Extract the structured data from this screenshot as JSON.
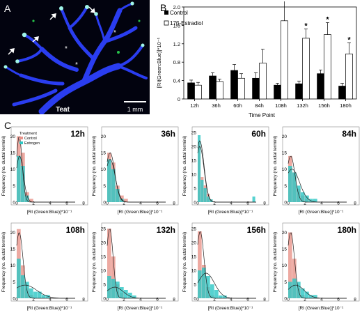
{
  "panels": {
    "a": "A",
    "b": "B",
    "c": "C"
  },
  "micrograph": {
    "location_label": "Teat",
    "scale_bar_label": "1 mm",
    "colors": {
      "background": "#02030f",
      "duct": "#2a3df0",
      "termini": "#9ff5e8",
      "gfp": "#27c24a"
    }
  },
  "bar_chart": {
    "legend": {
      "control": "Control",
      "treated": "17β-Estradiol"
    },
    "ylabel": "[RI(Green:Blue)]*10⁻¹",
    "xlabel": "Time Point",
    "significance_marker": "*",
    "colors": {
      "control": "#000000",
      "treated": "#ffffff"
    }
  },
  "chart_data": [
    {
      "type": "bar",
      "categories": [
        "12h",
        "36h",
        "60h",
        "84h",
        "108h",
        "132h",
        "156h",
        "180h"
      ],
      "series": [
        {
          "name": "Control",
          "values": [
            0.35,
            0.5,
            0.62,
            0.45,
            0.3,
            0.33,
            0.55,
            0.28
          ],
          "errors": [
            0.06,
            0.07,
            0.13,
            0.12,
            0.04,
            0.06,
            0.08,
            0.06
          ]
        },
        {
          "name": "17β-Estradiol",
          "values": [
            0.3,
            0.38,
            0.45,
            0.78,
            1.7,
            1.32,
            1.4,
            0.98
          ],
          "errors": [
            0.06,
            0.05,
            0.1,
            0.3,
            0.55,
            0.2,
            0.26,
            0.24
          ]
        }
      ],
      "significant": [
        false,
        false,
        false,
        false,
        true,
        true,
        true,
        true
      ],
      "ylim": [
        0,
        2.0
      ],
      "yticks": [
        "0",
        "0.4",
        "0.8",
        "1.2",
        "1.6",
        "2.0"
      ],
      "xlabel": "Time Point",
      "ylabel": "[RI(Green:Blue)]*10⁻¹"
    },
    {
      "type": "bar",
      "panels": [
        {
          "title": "12h",
          "control": [
            20,
            15,
            3,
            1,
            0,
            0,
            0,
            0
          ],
          "estrogen": [
            14,
            11,
            2,
            0,
            0,
            0,
            0,
            0
          ],
          "control_curve_peak": 20,
          "control_curve_center": 0.3,
          "control_curve_width": 0.35,
          "estrogen_curve_peak": 14,
          "estrogen_curve_center": 0.35,
          "estrogen_curve_width": 0.45
        },
        {
          "title": "36h",
          "control": [
            15,
            12,
            5,
            2,
            1,
            0,
            0,
            0
          ],
          "estrogen": [
            13,
            10,
            4,
            1,
            0,
            0,
            0,
            0
          ],
          "control_curve_peak": 15,
          "control_curve_center": 0.35,
          "control_curve_width": 0.55,
          "estrogen_curve_peak": 13,
          "estrogen_curve_center": 0.35,
          "estrogen_curve_width": 0.6
        },
        {
          "title": "60h",
          "control": [
            22,
            9,
            6,
            3,
            1,
            0,
            0,
            0,
            0,
            0,
            0,
            0,
            0,
            0,
            0,
            0,
            0,
            0,
            0,
            0,
            0,
            0
          ],
          "estrogen": [
            24,
            8,
            5,
            2,
            1,
            0,
            0,
            0,
            0,
            0,
            0,
            0,
            0,
            0,
            0,
            0,
            0,
            0,
            2,
            0,
            0,
            0
          ],
          "control_curve_peak": 22,
          "control_curve_center": 0.25,
          "control_curve_width": 0.5,
          "estrogen_curve_peak": 20,
          "estrogen_curve_center": 0.25,
          "estrogen_curve_width": 0.5
        },
        {
          "title": "84h",
          "control": [
            14,
            9,
            4,
            2,
            1,
            0,
            0,
            0
          ],
          "estrogen": [
            11,
            9,
            5,
            3,
            2,
            1,
            1,
            0
          ],
          "control_curve_peak": 14,
          "control_curve_center": 0.3,
          "control_curve_width": 0.5,
          "estrogen_curve_peak": 10,
          "estrogen_curve_center": 0.45,
          "estrogen_curve_width": 0.9
        },
        {
          "title": "108h",
          "control": [
            21,
            10,
            3,
            1,
            0,
            0,
            0,
            0
          ],
          "estrogen": [
            12,
            7,
            5,
            3,
            2,
            2,
            1,
            1
          ],
          "control_curve_peak": 20,
          "control_curve_center": 0.3,
          "control_curve_width": 0.45,
          "estrogen_curve_peak": 4,
          "estrogen_curve_center": 1.0,
          "estrogen_curve_width": 1.4
        },
        {
          "title": "132h",
          "control": [
            25,
            15,
            5,
            2,
            0,
            0,
            0,
            0
          ],
          "estrogen": [
            8,
            7,
            6,
            4,
            3,
            2,
            1,
            0
          ],
          "control_curve_peak": 25,
          "control_curve_center": 0.3,
          "control_curve_width": 0.4,
          "estrogen_curve_peak": 4,
          "estrogen_curve_center": 0.9,
          "estrogen_curve_width": 1.0
        },
        {
          "title": "156h",
          "control": [
            24,
            12,
            4,
            1,
            0,
            0,
            0,
            0
          ],
          "estrogen": [
            10,
            11,
            8,
            5,
            3,
            1,
            1,
            0
          ],
          "control_curve_peak": 24,
          "control_curve_center": 0.3,
          "control_curve_width": 0.45,
          "estrogen_curve_peak": 9,
          "estrogen_curve_center": 1.0,
          "estrogen_curve_width": 1.0
        },
        {
          "title": "180h",
          "control": [
            20,
            12,
            3,
            1,
            0,
            0,
            0,
            0
          ],
          "estrogen": [
            5,
            6,
            5,
            3,
            2,
            1,
            1,
            0
          ],
          "control_curve_peak": 20,
          "control_curve_center": 0.3,
          "control_curve_width": 0.45,
          "estrogen_curve_peak": 4,
          "estrogen_curve_center": 0.9,
          "estrogen_curve_width": 1.0
        }
      ],
      "xlabel": "[RI (Green:Blue)]*10⁻¹",
      "ylabel": "Frequency (no. ductal termini)",
      "xticks": [
        "0",
        "2",
        "4",
        "6",
        "8"
      ],
      "ytick_sets": {
        "small": [
          "0",
          "5",
          "10",
          "15",
          "20"
        ],
        "large": [
          "0",
          "5",
          "10",
          "15",
          "20",
          "25"
        ]
      },
      "legend": {
        "title": "Treatment",
        "items": [
          "Control",
          "Estrogen"
        ]
      },
      "colors": {
        "control": "#e8938a",
        "estrogen": "#2cc7c4",
        "curve": "#222222"
      }
    }
  ]
}
